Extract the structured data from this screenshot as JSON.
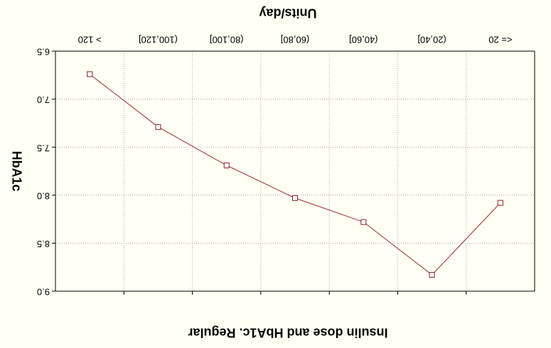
{
  "chart_data": {
    "type": "line",
    "title": "Insulin dose and HbA1c. Regular",
    "xlabel": "Units/day",
    "ylabel": "HbA1c",
    "categories": [
      "<= 20",
      "(20,40]",
      "(40,60]",
      "(60,80]",
      "(80,100]",
      "(100,120]",
      "> 120"
    ],
    "series": [
      {
        "values": [
          6.74,
          7.29,
          7.69,
          8.03,
          8.28,
          8.83,
          8.08
        ]
      }
    ],
    "y_ticks": [
      "9.0",
      "8.5",
      "8.0",
      "7.5",
      "7.0",
      "6.5"
    ],
    "ylim": [
      6.5,
      9.0
    ],
    "grid": true,
    "legend": "none",
    "line_color": "#9b2a2a",
    "marker_color": "#8b1f1f",
    "background": "#fffff4"
  }
}
